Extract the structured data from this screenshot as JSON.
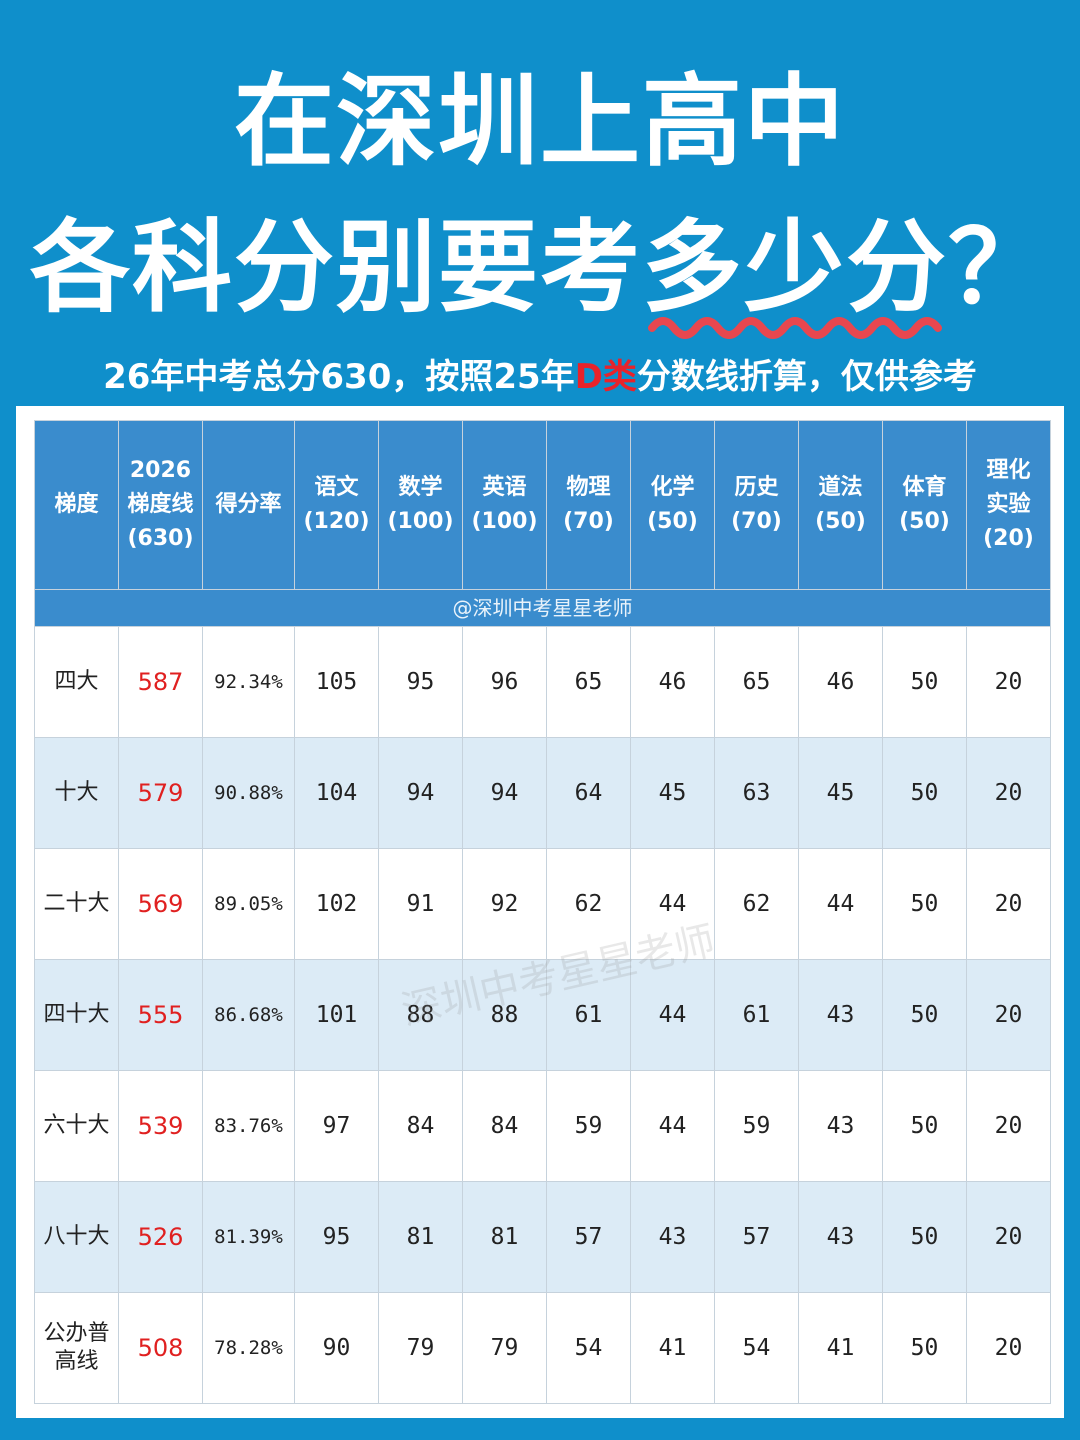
{
  "title_line1": "在深圳上高中",
  "title_line2_prefix": "各科分别要考",
  "title_line2_highlight": "多少分",
  "title_line2_suffix": "？",
  "subtitle_prefix": "26年中考总分630，按照25年",
  "subtitle_red": "D类",
  "subtitle_suffix": "分数线折算，仅供参考",
  "watermark_row": "@深圳中考星星老师",
  "watermark_overlay": "深圳中考星星老师",
  "colors": {
    "background": "#0f8fcb",
    "header": "#3a8ccd",
    "alt_row": "#dcebf6",
    "score_line": "#e02020",
    "wave": "#e8474f"
  },
  "headers": [
    {
      "lines": [
        "梯度"
      ]
    },
    {
      "lines": [
        "2026",
        "梯度线",
        "(630)"
      ]
    },
    {
      "lines": [
        "得分率"
      ]
    },
    {
      "lines": [
        "语文",
        "(120)"
      ]
    },
    {
      "lines": [
        "数学",
        "(100)"
      ]
    },
    {
      "lines": [
        "英语",
        "(100)"
      ]
    },
    {
      "lines": [
        "物理",
        "(70)"
      ]
    },
    {
      "lines": [
        "化学",
        "(50)"
      ]
    },
    {
      "lines": [
        "历史",
        "(70)"
      ]
    },
    {
      "lines": [
        "道法",
        "(50)"
      ]
    },
    {
      "lines": [
        "体育",
        "(50)"
      ]
    },
    {
      "lines": [
        "理化",
        "实验",
        "(20)"
      ]
    }
  ],
  "rows": [
    {
      "tier": [
        "四大"
      ],
      "line": "587",
      "rate": "92.34%",
      "scores": [
        "105",
        "95",
        "96",
        "65",
        "46",
        "65",
        "46",
        "50",
        "20"
      ]
    },
    {
      "tier": [
        "十大"
      ],
      "line": "579",
      "rate": "90.88%",
      "scores": [
        "104",
        "94",
        "94",
        "64",
        "45",
        "63",
        "45",
        "50",
        "20"
      ]
    },
    {
      "tier": [
        "二十大"
      ],
      "line": "569",
      "rate": "89.05%",
      "scores": [
        "102",
        "91",
        "92",
        "62",
        "44",
        "62",
        "44",
        "50",
        "20"
      ]
    },
    {
      "tier": [
        "四十大"
      ],
      "line": "555",
      "rate": "86.68%",
      "scores": [
        "101",
        "88",
        "88",
        "61",
        "44",
        "61",
        "43",
        "50",
        "20"
      ]
    },
    {
      "tier": [
        "六十大"
      ],
      "line": "539",
      "rate": "83.76%",
      "scores": [
        "97",
        "84",
        "84",
        "59",
        "44",
        "59",
        "43",
        "50",
        "20"
      ]
    },
    {
      "tier": [
        "八十大"
      ],
      "line": "526",
      "rate": "81.39%",
      "scores": [
        "95",
        "81",
        "81",
        "57",
        "43",
        "57",
        "43",
        "50",
        "20"
      ]
    },
    {
      "tier": [
        "公办普",
        "高线"
      ],
      "line": "508",
      "rate": "78.28%",
      "scores": [
        "90",
        "79",
        "79",
        "54",
        "41",
        "54",
        "41",
        "50",
        "20"
      ]
    }
  ]
}
